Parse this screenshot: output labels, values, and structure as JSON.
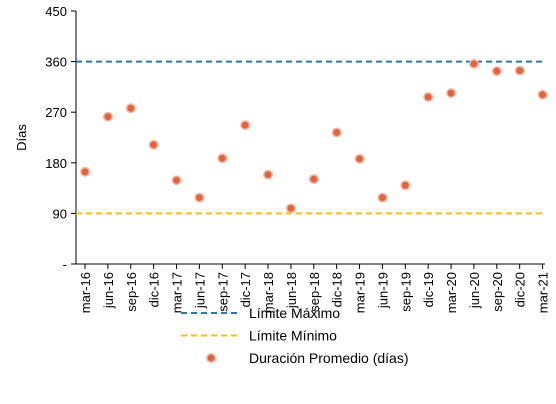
{
  "chart_data": {
    "type": "scatter",
    "ylabel": "Días",
    "ylim": [
      0,
      450
    ],
    "yticks": [
      {
        "value": 0,
        "label": "-"
      },
      {
        "value": 90,
        "label": "90"
      },
      {
        "value": 180,
        "label": "180"
      },
      {
        "value": 270,
        "label": "270"
      },
      {
        "value": 360,
        "label": "360"
      },
      {
        "value": 450,
        "label": "450"
      }
    ],
    "categories": [
      "mar-16",
      "jun-16",
      "sep-16",
      "dic-16",
      "mar-17",
      "jun-17",
      "sep-17",
      "dic-17",
      "mar-18",
      "jun-18",
      "sep-18",
      "dic-18",
      "mar-19",
      "jun-19",
      "sep-19",
      "dic-19",
      "mar-20",
      "jun-20",
      "sep-20",
      "dic-20",
      "mar-21"
    ],
    "series": [
      {
        "name": "Duración Promedio (días)",
        "color": "#E8603C",
        "marker": "circle",
        "values": [
          164,
          262,
          277,
          212,
          149,
          118,
          188,
          247,
          159,
          99,
          151,
          234,
          187,
          118,
          140,
          297,
          304,
          356,
          343,
          344,
          301
        ]
      }
    ],
    "reference_lines": [
      {
        "name": "Límite Máximo",
        "value": 360,
        "color": "#2E75B6",
        "style": "dashed"
      },
      {
        "name": "Límite Mínimo",
        "value": 90,
        "color": "#FFC000",
        "style": "dashed"
      }
    ],
    "grid": false,
    "legend_position": "bottom"
  }
}
